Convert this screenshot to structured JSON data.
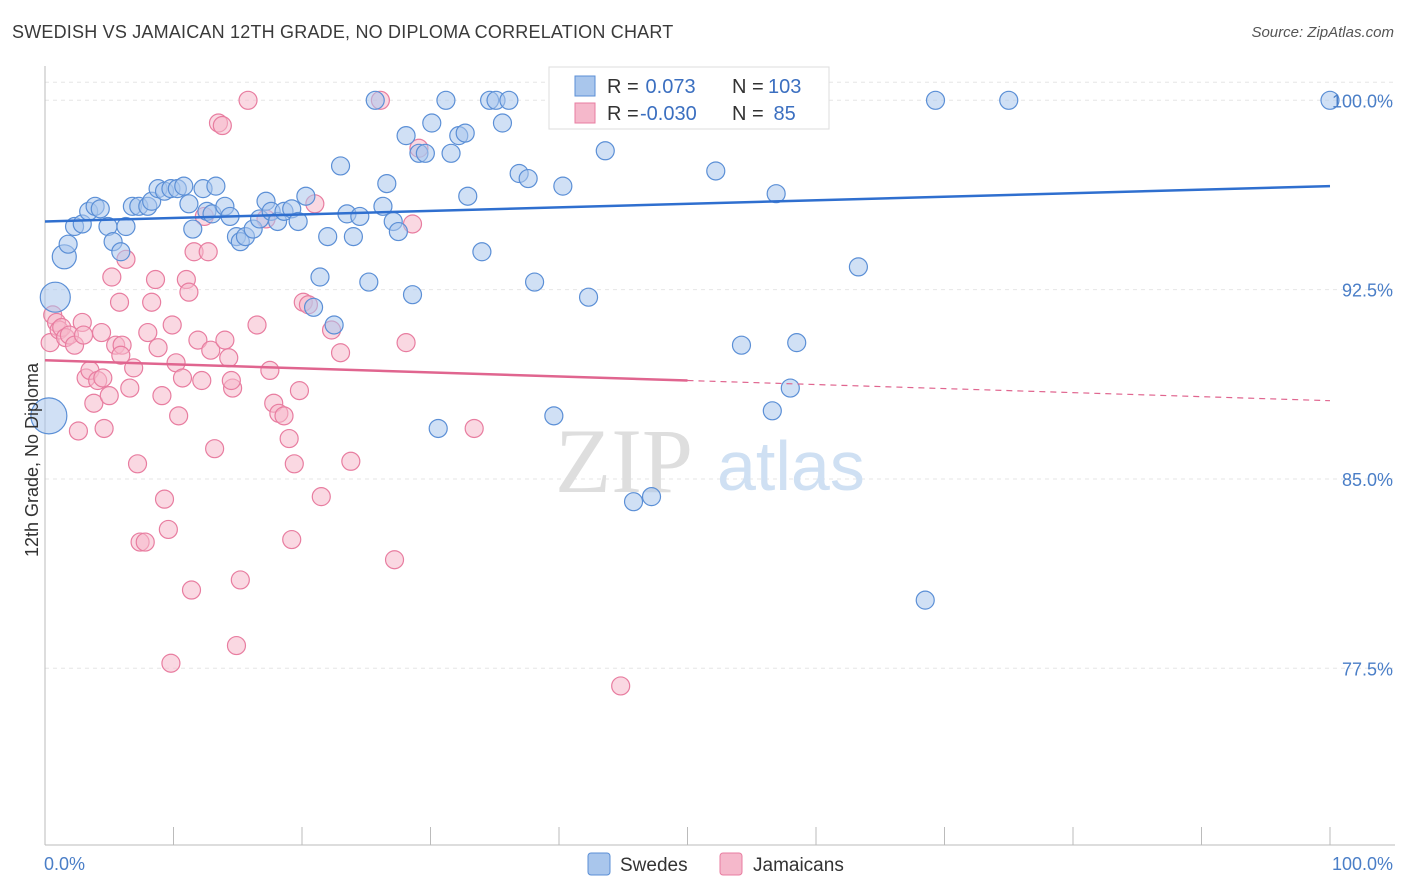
{
  "title": "SWEDISH VS JAMAICAN 12TH GRADE, NO DIPLOMA CORRELATION CHART",
  "source": "Source: ZipAtlas.com",
  "watermark": {
    "zip": "ZIP",
    "atlas": "atlas"
  },
  "colors": {
    "swedes_fill": "#a9c6ec",
    "swedes_stroke": "#5b8fd6",
    "swedes_line": "#2f6fcf",
    "jamaicans_fill": "#f5b8cb",
    "jamaicans_stroke": "#e87da0",
    "jamaicans_line": "#e0658f",
    "tick_label": "#4a7ec7",
    "grid": "#e6e6e6"
  },
  "legend": {
    "r_label": "R =",
    "n_label": "N =",
    "rows": [
      {
        "r": " 0.073",
        "n": "103"
      },
      {
        "r": "-0.030",
        "n": " 85"
      }
    ]
  },
  "chart_data": {
    "type": "scatter",
    "title": "SWEDISH VS JAMAICAN 12TH GRADE, NO DIPLOMA CORRELATION CHART",
    "xlabel": "",
    "ylabel": "12th Grade, No Diploma",
    "xlim": [
      0,
      100
    ],
    "ylim": [
      70.5,
      101.2
    ],
    "x_tick_labels": [
      "0.0%",
      "100.0%"
    ],
    "y_ticks": [
      77.5,
      85.0,
      92.5,
      100.0
    ],
    "y_tick_labels": [
      "77.5%",
      "85.0%",
      "92.5%",
      "100.0%"
    ],
    "grid": "horizontal dashed",
    "legend_placement": "top-center and bottom",
    "series": [
      {
        "name": "Swedes",
        "trend": {
          "x": [
            0,
            100
          ],
          "y": [
            95.2,
            96.6
          ]
        },
        "points": [
          [
            0.3,
            87.5,
            18
          ],
          [
            0.8,
            92.2,
            15
          ],
          [
            1.5,
            93.8,
            12
          ],
          [
            1.8,
            94.3,
            9
          ],
          [
            2.3,
            95.0,
            9
          ],
          [
            2.9,
            95.1,
            9
          ],
          [
            3.4,
            95.6,
            9
          ],
          [
            3.9,
            95.8,
            9
          ],
          [
            4.3,
            95.7,
            9
          ],
          [
            4.9,
            95.0,
            9
          ],
          [
            5.3,
            94.4,
            9
          ],
          [
            5.9,
            94.0,
            9
          ],
          [
            6.3,
            95.0,
            9
          ],
          [
            6.8,
            95.8,
            9
          ],
          [
            7.3,
            95.8,
            9
          ],
          [
            8.0,
            95.8,
            9
          ],
          [
            8.3,
            96.0,
            9
          ],
          [
            8.8,
            96.5,
            9
          ],
          [
            9.3,
            96.4,
            9
          ],
          [
            9.8,
            96.5,
            9
          ],
          [
            10.3,
            96.5,
            9
          ],
          [
            10.8,
            96.6,
            9
          ],
          [
            11.2,
            95.9,
            9
          ],
          [
            11.5,
            94.9,
            9
          ],
          [
            12.3,
            96.5,
            9
          ],
          [
            12.6,
            95.6,
            9
          ],
          [
            13.0,
            95.5,
            9
          ],
          [
            13.3,
            96.6,
            9
          ],
          [
            14.0,
            95.8,
            9
          ],
          [
            14.4,
            95.4,
            9
          ],
          [
            14.9,
            94.6,
            9
          ],
          [
            15.2,
            94.4,
            9
          ],
          [
            15.6,
            94.6,
            9
          ],
          [
            16.2,
            94.9,
            9
          ],
          [
            16.7,
            95.3,
            9
          ],
          [
            17.2,
            96.0,
            9
          ],
          [
            17.6,
            95.6,
            9
          ],
          [
            18.1,
            95.2,
            9
          ],
          [
            18.6,
            95.6,
            9
          ],
          [
            19.2,
            95.7,
            9
          ],
          [
            19.7,
            95.2,
            9
          ],
          [
            20.3,
            96.2,
            9
          ],
          [
            20.9,
            91.8,
            9
          ],
          [
            21.4,
            93.0,
            9
          ],
          [
            22.0,
            94.6,
            9
          ],
          [
            22.5,
            91.1,
            9
          ],
          [
            23.0,
            97.4,
            9
          ],
          [
            23.5,
            95.5,
            9
          ],
          [
            24.0,
            94.6,
            9
          ],
          [
            24.5,
            95.4,
            9
          ],
          [
            25.2,
            92.8,
            9
          ],
          [
            25.7,
            100.0,
            9
          ],
          [
            26.3,
            95.8,
            9
          ],
          [
            26.6,
            96.7,
            9
          ],
          [
            27.1,
            95.2,
            9
          ],
          [
            27.5,
            94.8,
            9
          ],
          [
            28.1,
            98.6,
            9
          ],
          [
            28.6,
            92.3,
            9
          ],
          [
            29.1,
            97.9,
            9
          ],
          [
            29.6,
            97.9,
            9
          ],
          [
            30.1,
            99.1,
            9
          ],
          [
            30.6,
            87.0,
            9
          ],
          [
            31.2,
            100.0,
            9
          ],
          [
            31.6,
            97.9,
            9
          ],
          [
            32.2,
            98.6,
            9
          ],
          [
            32.7,
            98.7,
            9
          ],
          [
            32.9,
            96.2,
            9
          ],
          [
            34.0,
            94.0,
            9
          ],
          [
            34.6,
            100.0,
            9
          ],
          [
            35.1,
            100.0,
            9
          ],
          [
            35.6,
            99.1,
            9
          ],
          [
            36.1,
            100.0,
            9
          ],
          [
            36.9,
            97.1,
            9
          ],
          [
            37.6,
            96.9,
            9
          ],
          [
            38.1,
            92.8,
            9
          ],
          [
            39.6,
            87.5,
            9
          ],
          [
            40.3,
            96.6,
            9
          ],
          [
            41.0,
            100.0,
            9
          ],
          [
            42.3,
            92.2,
            9
          ],
          [
            43.6,
            98.0,
            9
          ],
          [
            45.3,
            100.0,
            9
          ],
          [
            45.8,
            84.1,
            9
          ],
          [
            46.6,
            100.0,
            9
          ],
          [
            47.2,
            84.3,
            9
          ],
          [
            47.8,
            100.0,
            9
          ],
          [
            50.0,
            100.0,
            9
          ],
          [
            52.2,
            97.2,
            9
          ],
          [
            54.0,
            100.0,
            9
          ],
          [
            54.2,
            90.3,
            9
          ],
          [
            56.0,
            100.0,
            9
          ],
          [
            56.6,
            87.7,
            9
          ],
          [
            56.9,
            96.3,
            9
          ],
          [
            58.0,
            88.6,
            9
          ],
          [
            58.5,
            90.4,
            9
          ],
          [
            60.0,
            100.0,
            9
          ],
          [
            63.3,
            93.4,
            9
          ],
          [
            68.5,
            80.2,
            9
          ],
          [
            69.3,
            100.0,
            9
          ],
          [
            75.0,
            100.0,
            9
          ],
          [
            100.0,
            100.0,
            9
          ]
        ]
      },
      {
        "name": "Jamaicans",
        "trend": {
          "x": [
            0,
            100
          ],
          "y": [
            89.7,
            88.1
          ]
        },
        "points": [
          [
            0.4,
            90.4,
            9
          ],
          [
            0.6,
            91.5,
            9
          ],
          [
            0.9,
            91.2,
            9
          ],
          [
            1.1,
            90.9,
            9
          ],
          [
            1.3,
            91.0,
            9
          ],
          [
            1.6,
            90.6,
            9
          ],
          [
            1.9,
            90.7,
            9
          ],
          [
            2.3,
            90.3,
            9
          ],
          [
            2.6,
            86.9,
            9
          ],
          [
            2.9,
            91.2,
            9
          ],
          [
            3.2,
            89.0,
            9
          ],
          [
            3.5,
            89.3,
            9
          ],
          [
            3.8,
            88.0,
            9
          ],
          [
            4.1,
            88.9,
            9
          ],
          [
            4.4,
            90.8,
            9
          ],
          [
            4.6,
            87.0,
            9
          ],
          [
            5.0,
            88.3,
            9
          ],
          [
            5.2,
            93.0,
            9
          ],
          [
            5.5,
            90.3,
            9
          ],
          [
            5.8,
            92.0,
            9
          ],
          [
            6.0,
            90.3,
            9
          ],
          [
            6.3,
            93.7,
            9
          ],
          [
            6.6,
            88.6,
            9
          ],
          [
            6.9,
            89.4,
            9
          ],
          [
            7.2,
            85.6,
            9
          ],
          [
            7.4,
            82.5,
            9
          ],
          [
            7.8,
            82.5,
            9
          ],
          [
            8.0,
            90.8,
            9
          ],
          [
            8.3,
            92.0,
            9
          ],
          [
            8.6,
            92.9,
            9
          ],
          [
            8.8,
            90.2,
            9
          ],
          [
            9.1,
            88.3,
            9
          ],
          [
            9.3,
            84.2,
            9
          ],
          [
            9.6,
            83.0,
            9
          ],
          [
            9.9,
            91.1,
            9
          ],
          [
            10.2,
            89.6,
            9
          ],
          [
            10.4,
            87.5,
            9
          ],
          [
            10.7,
            89.0,
            9
          ],
          [
            11.0,
            92.9,
            9
          ],
          [
            11.2,
            92.4,
            9
          ],
          [
            11.4,
            80.6,
            9
          ],
          [
            11.6,
            94.0,
            9
          ],
          [
            11.9,
            90.5,
            9
          ],
          [
            12.2,
            88.9,
            9
          ],
          [
            12.4,
            95.4,
            9
          ],
          [
            12.7,
            94.0,
            9
          ],
          [
            12.9,
            90.1,
            9
          ],
          [
            13.2,
            86.2,
            9
          ],
          [
            13.5,
            99.1,
            9
          ],
          [
            13.8,
            99.0,
            9
          ],
          [
            14.0,
            90.5,
            9
          ],
          [
            14.3,
            89.8,
            9
          ],
          [
            14.6,
            88.6,
            9
          ],
          [
            14.9,
            78.4,
            9
          ],
          [
            15.2,
            81.0,
            9
          ],
          [
            15.8,
            100.0,
            9
          ],
          [
            16.5,
            91.1,
            9
          ],
          [
            17.2,
            95.3,
            9
          ],
          [
            17.5,
            89.3,
            9
          ],
          [
            17.8,
            88.0,
            9
          ],
          [
            18.2,
            87.6,
            9
          ],
          [
            18.6,
            87.5,
            9
          ],
          [
            19.0,
            86.6,
            9
          ],
          [
            19.4,
            85.6,
            9
          ],
          [
            19.8,
            88.5,
            9
          ],
          [
            20.1,
            92.0,
            9
          ],
          [
            20.5,
            91.9,
            9
          ],
          [
            21.0,
            95.9,
            9
          ],
          [
            21.5,
            84.3,
            9
          ],
          [
            22.3,
            90.9,
            9
          ],
          [
            23.0,
            90.0,
            9
          ],
          [
            23.8,
            85.7,
            9
          ],
          [
            26.1,
            100.0,
            9
          ],
          [
            27.2,
            81.8,
            9
          ],
          [
            28.1,
            90.4,
            9
          ],
          [
            28.6,
            95.1,
            9
          ],
          [
            29.1,
            98.1,
            9
          ],
          [
            33.4,
            87.0,
            9
          ],
          [
            44.8,
            76.8,
            9
          ],
          [
            9.8,
            77.7,
            9
          ],
          [
            19.2,
            82.6,
            9
          ],
          [
            14.5,
            88.9,
            9
          ],
          [
            5.9,
            89.9,
            9
          ],
          [
            4.5,
            89.0,
            9
          ],
          [
            3.0,
            90.7,
            9
          ]
        ]
      }
    ]
  }
}
